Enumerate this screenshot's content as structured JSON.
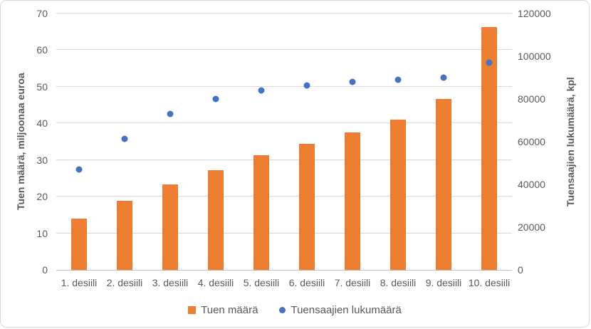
{
  "colors": {
    "bar_orange": "#ED7D31",
    "dot_blue": "#4472C4",
    "text_gray": "#595959",
    "gridline": "#D9D9D9",
    "axis_line": "#BFBFBF",
    "border": "#D9D9D9",
    "background": "#FFFFFF"
  },
  "chart_data": {
    "type": "bar",
    "categories": [
      "1. desiili",
      "2. desiili",
      "3. desiili",
      "4. desiili",
      "5. desiili",
      "6. desiili",
      "7. desiili",
      "8. desiili",
      "9. desiili",
      "10. desiili"
    ],
    "series": [
      {
        "name": "Tuen määrä",
        "kind": "bar",
        "axis": "left",
        "marker": "square",
        "color": "#ED7D31",
        "values": [
          14.0,
          18.8,
          23.3,
          27.3,
          31.3,
          34.5,
          37.5,
          41.0,
          46.7,
          66.4
        ]
      },
      {
        "name": "Tuensaajien lukumäärä",
        "kind": "scatter",
        "axis": "right",
        "marker": "circle",
        "color": "#4472C4",
        "values": [
          47000,
          61500,
          73000,
          80000,
          84000,
          86500,
          88000,
          89000,
          90000,
          97000
        ]
      }
    ],
    "title": "",
    "xlabel": "",
    "ylabel_left": "Tuen määrä, miljoonaa euroa",
    "ylabel_right": "Tuensaajien lukumäärä, kpl",
    "ylim_left": [
      0,
      70
    ],
    "ylim_right": [
      0,
      120000
    ],
    "left_ticks": [
      0,
      10,
      20,
      30,
      40,
      50,
      60,
      70
    ],
    "right_ticks": [
      0,
      20000,
      40000,
      60000,
      80000,
      100000,
      120000
    ],
    "grid": true,
    "legend_position": "bottom"
  }
}
